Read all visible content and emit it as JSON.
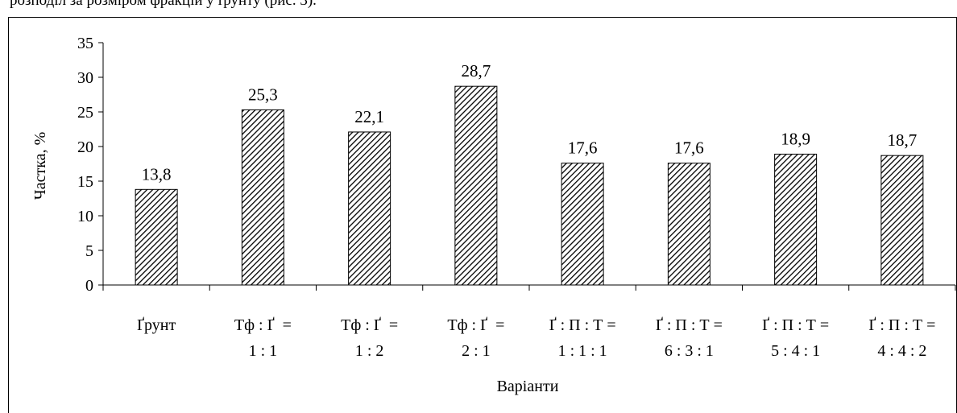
{
  "header_text": "розподіл за розміром фракцій у ґрунту (рис. 3).",
  "chart_data": {
    "type": "bar",
    "categories": [
      [
        "Ґрунт"
      ],
      [
        "Тф : Ґ  =",
        "1 : 1"
      ],
      [
        "Тф : Ґ  =",
        "1 : 2"
      ],
      [
        "Тф : Ґ  =",
        "2 : 1"
      ],
      [
        "Ґ : П : Т =",
        "1 : 1 : 1"
      ],
      [
        "Ґ : П : Т =",
        "6 : 3 : 1"
      ],
      [
        "Ґ : П : Т =",
        "5 : 4 : 1"
      ],
      [
        "Ґ : П : Т =",
        "4 : 4 : 2"
      ]
    ],
    "values": [
      13.8,
      25.3,
      22.1,
      28.7,
      17.6,
      17.6,
      18.9,
      18.7
    ],
    "data_labels": [
      "13,8",
      "25,3",
      "22,1",
      "28,7",
      "17,6",
      "17,6",
      "18,9",
      "18,7"
    ],
    "title": "",
    "xlabel": "Варіанти",
    "ylabel": "Частка, %",
    "ylim": [
      0,
      35
    ],
    "yticks": [
      0,
      5,
      10,
      15,
      20,
      25,
      30,
      35
    ],
    "grid": false,
    "legend": "none",
    "bar_fill": "diagonal-hatch",
    "colors": {
      "bar_stroke": "#000000",
      "hatch": "#000000",
      "background": "#ffffff"
    }
  }
}
